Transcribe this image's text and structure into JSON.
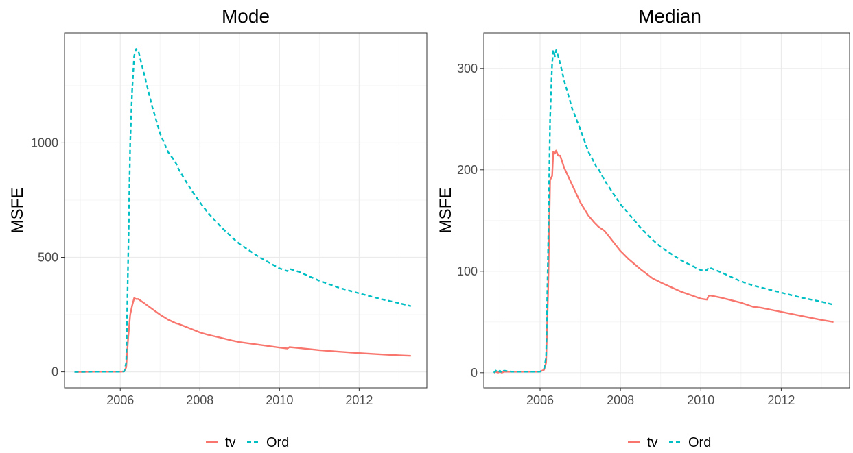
{
  "colors": {
    "tv": "#F8766D",
    "Ord": "#00BFC4",
    "grid_major": "#EBEBEB",
    "grid_minor": "#F5F5F5",
    "panel_border": "#333333",
    "tick_text": "#4D4D4D"
  },
  "chart_data": [
    {
      "type": "line",
      "title": "Mode",
      "xlabel": "",
      "ylabel": "MSFE",
      "xlim": [
        2004.6,
        2013.7
      ],
      "ylim": [
        -70,
        1480
      ],
      "x_ticks": [
        2006,
        2008,
        2010,
        2012
      ],
      "x_tick_labels": [
        "2006",
        "2008",
        "2010",
        "2012"
      ],
      "y_ticks": [
        0,
        500,
        1000
      ],
      "y_tick_labels": [
        "0",
        "500",
        "1000"
      ],
      "grid": true,
      "legend": "bottom",
      "series": [
        {
          "name": "tv",
          "line_style": "solid",
          "x": [
            2004.85,
            2005.0,
            2005.3,
            2005.6,
            2005.9,
            2006.0,
            2006.1,
            2006.15,
            2006.2,
            2006.25,
            2006.3,
            2006.35,
            2006.4,
            2006.45,
            2006.5,
            2006.6,
            2006.8,
            2007.0,
            2007.2,
            2007.35,
            2007.4,
            2007.45,
            2007.6,
            2007.8,
            2008.0,
            2008.2,
            2008.5,
            2008.8,
            2009.0,
            2009.5,
            2010.0,
            2010.2,
            2010.25,
            2010.5,
            2011.0,
            2011.5,
            2012.0,
            2012.5,
            2013.0,
            2013.3
          ],
          "y": [
            0,
            0,
            1,
            1,
            1,
            1,
            2,
            20,
            150,
            250,
            290,
            322,
            318,
            318,
            312,
            300,
            275,
            250,
            228,
            216,
            212,
            210,
            200,
            186,
            172,
            162,
            150,
            137,
            130,
            118,
            106,
            102,
            108,
            104,
            95,
            88,
            82,
            77,
            72,
            70
          ]
        },
        {
          "name": "Ord",
          "line_style": "dashed",
          "x": [
            2004.85,
            2005.0,
            2005.3,
            2005.6,
            2005.9,
            2006.0,
            2006.1,
            2006.15,
            2006.2,
            2006.25,
            2006.3,
            2006.35,
            2006.4,
            2006.45,
            2006.5,
            2006.6,
            2006.8,
            2007.0,
            2007.2,
            2007.35,
            2007.4,
            2007.45,
            2007.6,
            2007.8,
            2008.0,
            2008.2,
            2008.5,
            2008.8,
            2009.0,
            2009.5,
            2010.0,
            2010.2,
            2010.25,
            2010.5,
            2011.0,
            2011.5,
            2012.0,
            2012.5,
            2013.0,
            2013.3
          ],
          "y": [
            0,
            0,
            1,
            1,
            1,
            1,
            2,
            40,
            500,
            1000,
            1230,
            1380,
            1410,
            1405,
            1370,
            1300,
            1160,
            1040,
            960,
            925,
            910,
            890,
            845,
            790,
            740,
            695,
            638,
            588,
            558,
            500,
            452,
            440,
            450,
            436,
            398,
            367,
            343,
            320,
            300,
            287
          ]
        }
      ]
    },
    {
      "type": "line",
      "title": "Median",
      "xlabel": "",
      "ylabel": "MSFE",
      "xlim": [
        2004.6,
        2013.7
      ],
      "ylim": [
        -15,
        335
      ],
      "x_ticks": [
        2006,
        2008,
        2010,
        2012
      ],
      "x_tick_labels": [
        "2006",
        "2008",
        "2010",
        "2012"
      ],
      "y_ticks": [
        0,
        100,
        200,
        300
      ],
      "y_tick_labels": [
        "0",
        "100",
        "200",
        "300"
      ],
      "grid": true,
      "legend": "bottom",
      "series": [
        {
          "name": "tv",
          "line_style": "solid",
          "x": [
            2004.85,
            2004.9,
            2004.95,
            2005.0,
            2005.05,
            2005.1,
            2005.3,
            2005.6,
            2005.9,
            2006.0,
            2006.1,
            2006.15,
            2006.2,
            2006.25,
            2006.3,
            2006.33,
            2006.37,
            2006.4,
            2006.45,
            2006.5,
            2006.6,
            2006.8,
            2007.0,
            2007.2,
            2007.35,
            2007.4,
            2007.45,
            2007.6,
            2007.8,
            2008.0,
            2008.2,
            2008.5,
            2008.8,
            2009.0,
            2009.5,
            2010.0,
            2010.15,
            2010.2,
            2010.25,
            2010.5,
            2011.0,
            2011.3,
            2011.5,
            2012.0,
            2012.5,
            2013.0,
            2013.3
          ],
          "y": [
            0,
            1,
            0,
            1,
            0,
            1,
            1,
            1,
            1,
            1,
            3,
            10,
            80,
            190,
            194,
            218,
            216,
            219,
            214,
            214,
            202,
            185,
            168,
            155,
            148,
            146,
            144,
            140,
            130,
            120,
            112,
            102,
            93,
            89,
            80,
            73,
            72,
            76,
            76,
            74,
            69,
            65,
            64,
            60,
            56,
            52,
            50
          ]
        },
        {
          "name": "Ord",
          "line_style": "dashed",
          "x": [
            2004.85,
            2004.9,
            2004.95,
            2005.0,
            2005.05,
            2005.1,
            2005.3,
            2005.6,
            2005.9,
            2006.0,
            2006.1,
            2006.15,
            2006.2,
            2006.25,
            2006.3,
            2006.33,
            2006.37,
            2006.4,
            2006.45,
            2006.5,
            2006.6,
            2006.8,
            2007.0,
            2007.2,
            2007.35,
            2007.4,
            2007.45,
            2007.6,
            2007.8,
            2008.0,
            2008.2,
            2008.5,
            2008.8,
            2009.0,
            2009.5,
            2010.0,
            2010.15,
            2010.2,
            2010.25,
            2010.5,
            2011.0,
            2011.3,
            2011.5,
            2012.0,
            2012.5,
            2013.0,
            2013.3
          ],
          "y": [
            0,
            2,
            0,
            2,
            0,
            2,
            1,
            1,
            1,
            1,
            4,
            15,
            120,
            250,
            305,
            318,
            312,
            318,
            312,
            305,
            288,
            260,
            240,
            218,
            207,
            203,
            201,
            190,
            178,
            166,
            157,
            143,
            131,
            124,
            111,
            101,
            101,
            104,
            103,
            99,
            90,
            86,
            84,
            79,
            74,
            70,
            67
          ]
        }
      ]
    }
  ],
  "legends": [
    {
      "entries": [
        "tv",
        "Ord"
      ]
    },
    {
      "entries": [
        "tv",
        "Ord"
      ]
    }
  ]
}
